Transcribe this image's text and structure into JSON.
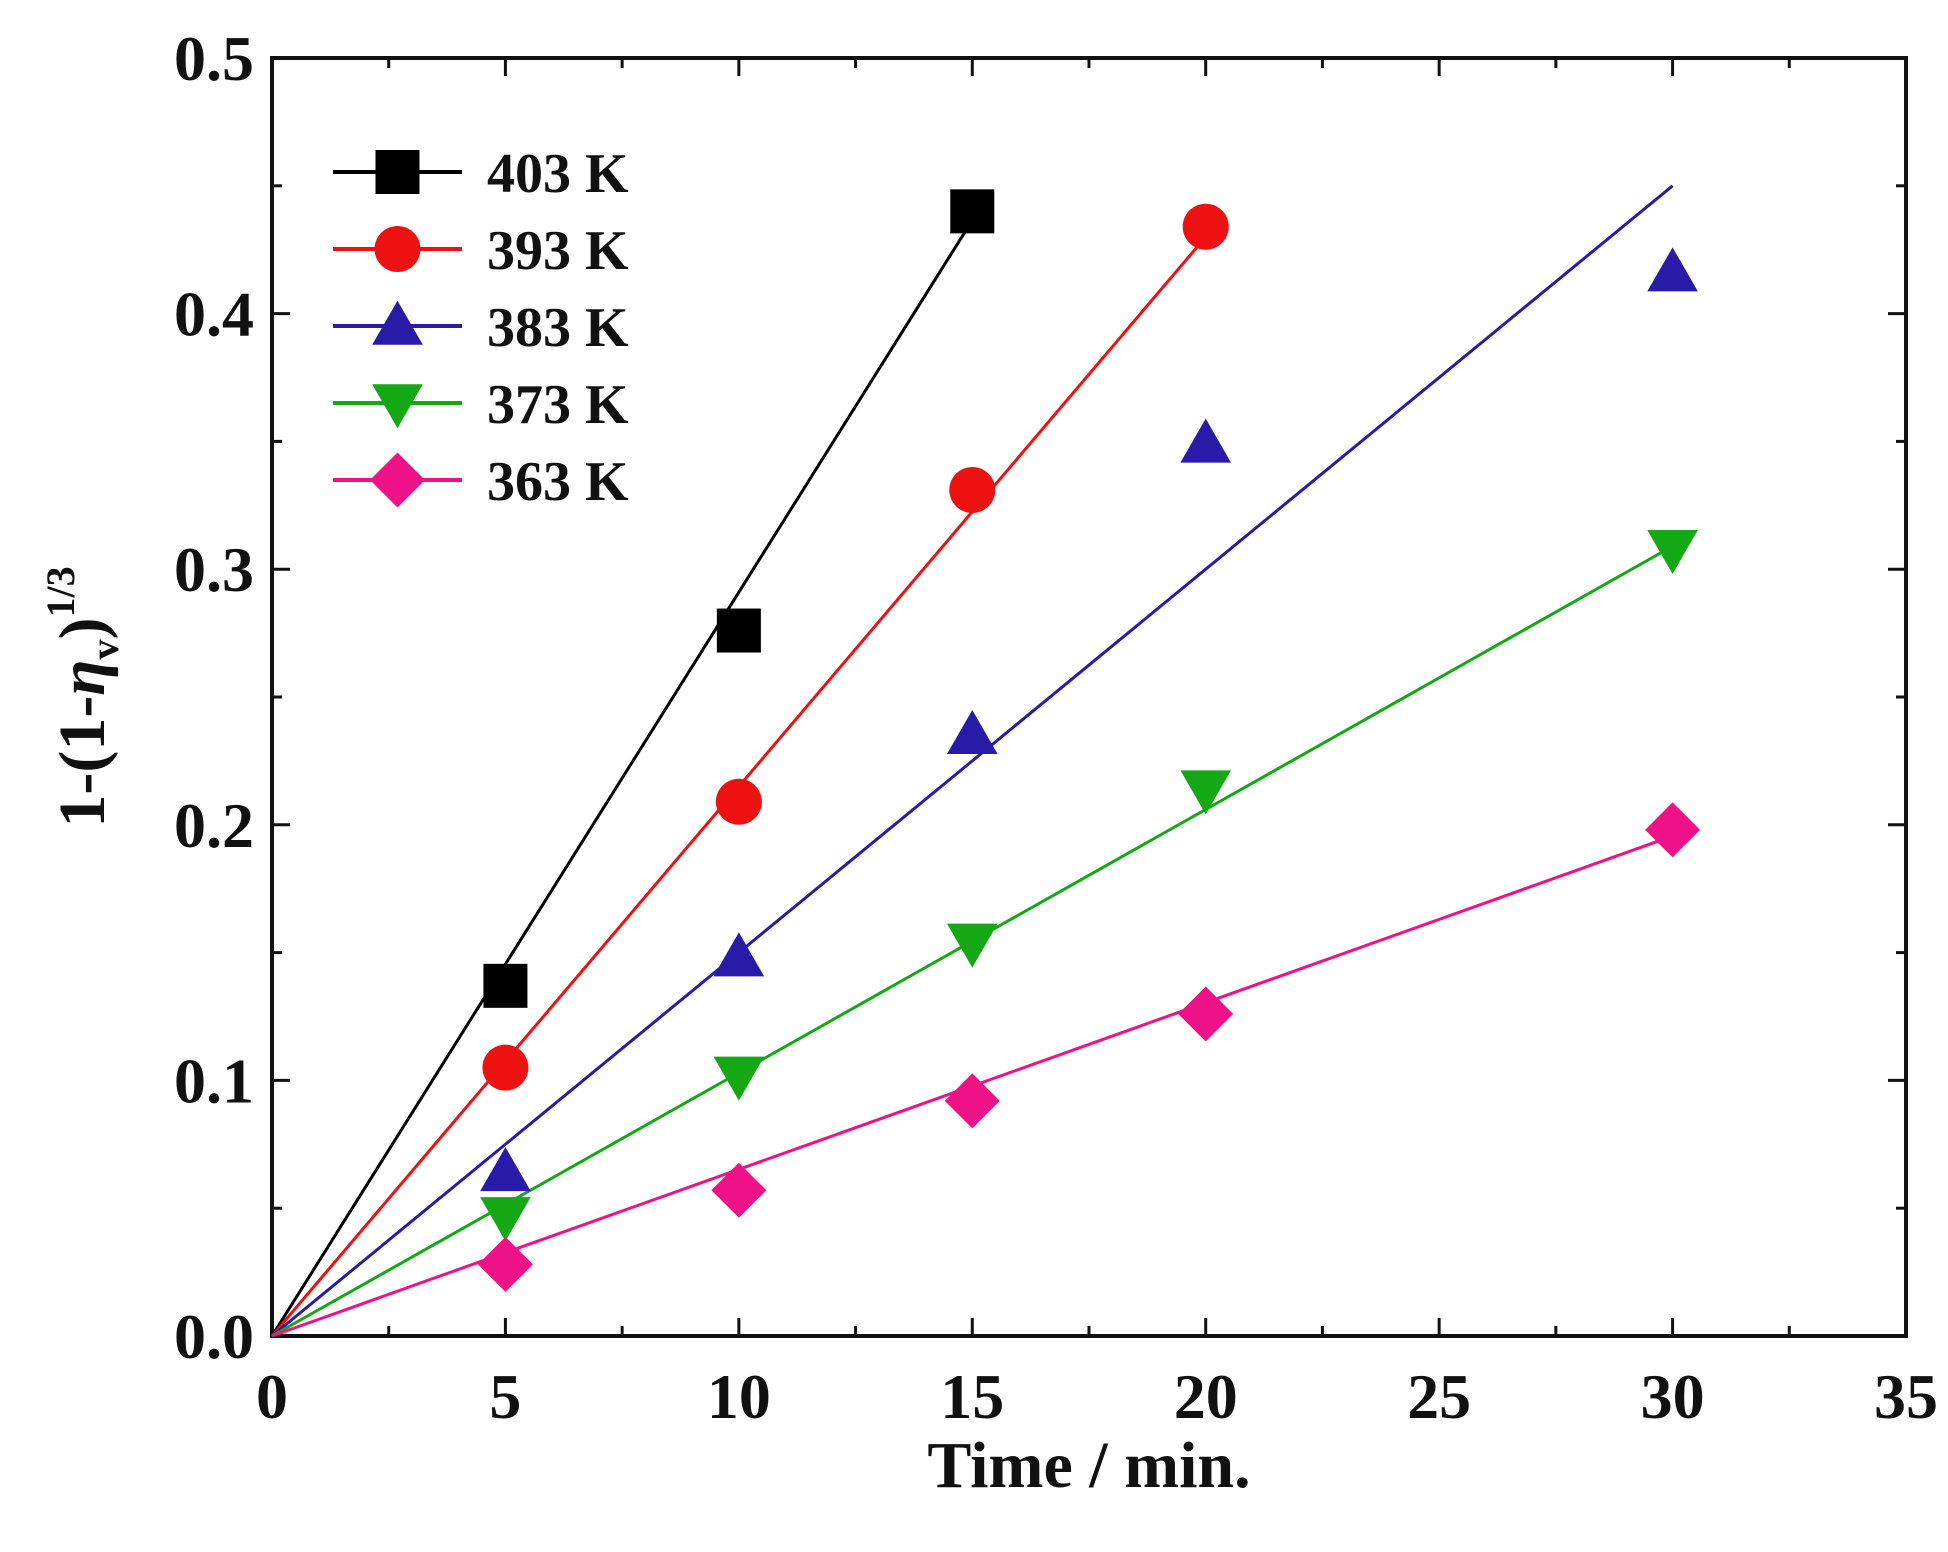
{
  "chart_data": {
    "type": "scatter",
    "title": "",
    "xlabel": "Time / min.",
    "ylabel": {
      "prefix": "1-(1-",
      "symbol": "η",
      "subscript": "v",
      "close": ")",
      "exponent": "1/3"
    },
    "xlim": [
      0,
      35
    ],
    "ylim": [
      0,
      0.5
    ],
    "x_ticks": [
      0,
      5,
      10,
      15,
      20,
      25,
      30,
      35
    ],
    "x_tick_labels": [
      "0",
      "5",
      "10",
      "15",
      "20",
      "25",
      "30",
      "35"
    ],
    "y_ticks": [
      0.0,
      0.1,
      0.2,
      0.3,
      0.4,
      0.5
    ],
    "y_tick_labels": [
      "0.0",
      "0.1",
      "0.2",
      "0.3",
      "0.4",
      "0.5"
    ],
    "legend_position": "top-left",
    "grid": false,
    "series": [
      {
        "name": "403 K",
        "color": "#000000",
        "marker": "square",
        "x": [
          5,
          10,
          15
        ],
        "y": [
          0.137,
          0.276,
          0.44
        ],
        "fit_slope": 0.0291,
        "fit_x_end": 15
      },
      {
        "name": "393 K",
        "color": "#ee1111",
        "marker": "circle",
        "x": [
          5,
          10,
          15,
          20
        ],
        "y": [
          0.105,
          0.209,
          0.331,
          0.434
        ],
        "fit_slope": 0.0215,
        "fit_x_end": 20
      },
      {
        "name": "383 K",
        "color": "#2a1aa8",
        "marker": "triangle-up",
        "x": [
          5,
          10,
          15,
          20,
          30
        ],
        "y": [
          0.064,
          0.148,
          0.235,
          0.349,
          0.416
        ],
        "fit_slope": 0.015,
        "fit_x_end": 30
      },
      {
        "name": "373 K",
        "color": "#15a815",
        "marker": "triangle-down",
        "x": [
          5,
          10,
          15,
          20,
          30
        ],
        "y": [
          0.047,
          0.102,
          0.154,
          0.214,
          0.308
        ],
        "fit_slope": 0.0103,
        "fit_x_end": 30
      },
      {
        "name": "363 K",
        "color": "#ee1188",
        "marker": "diamond",
        "x": [
          5,
          10,
          15,
          20,
          30
        ],
        "y": [
          0.028,
          0.057,
          0.092,
          0.126,
          0.198
        ],
        "fit_slope": 0.00652,
        "fit_x_end": 30
      }
    ]
  }
}
